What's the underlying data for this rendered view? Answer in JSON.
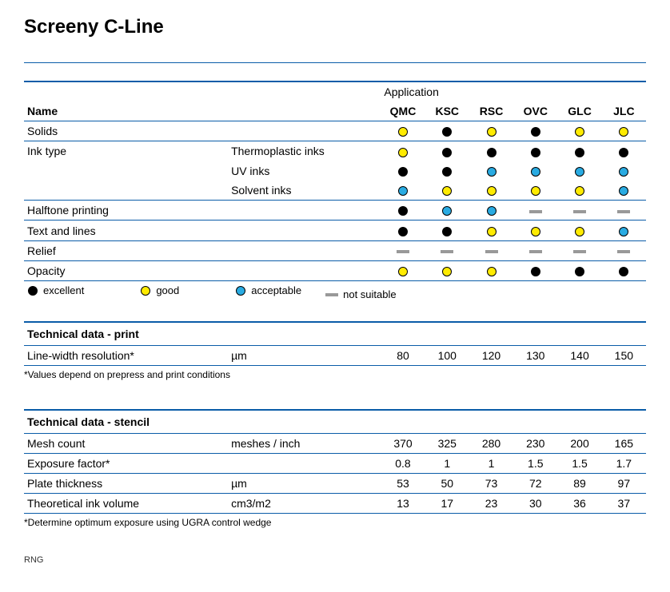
{
  "title": "Screeny C-Line",
  "columns": [
    "QMC",
    "KSC",
    "RSC",
    "OVC",
    "GLC",
    "JLC"
  ],
  "application_label": "Application",
  "name_label": "Name",
  "rating_colors": {
    "excellent": {
      "fill": "#000000",
      "stroke": "#000000"
    },
    "good": {
      "fill": "#ffeb00",
      "stroke": "#000000"
    },
    "acceptable": {
      "fill": "#29abe2",
      "stroke": "#000000"
    },
    "not_suitable": {
      "dash": "#999999"
    }
  },
  "legend": [
    {
      "key": "excellent",
      "label": "excellent"
    },
    {
      "key": "good",
      "label": "good"
    },
    {
      "key": "acceptable",
      "label": "acceptable"
    },
    {
      "key": "not_suitable",
      "label": "not suitable"
    }
  ],
  "app_rows": [
    {
      "name": "Solids",
      "sub": "",
      "vals": [
        "good",
        "excellent",
        "good",
        "excellent",
        "good",
        "good"
      ],
      "line": true
    },
    {
      "name": "Ink type",
      "sub": "Thermoplastic inks",
      "vals": [
        "good",
        "excellent",
        "excellent",
        "excellent",
        "excellent",
        "excellent"
      ],
      "line": false
    },
    {
      "name": "",
      "sub": "UV inks",
      "vals": [
        "excellent",
        "excellent",
        "acceptable",
        "acceptable",
        "acceptable",
        "acceptable"
      ],
      "line": false
    },
    {
      "name": "",
      "sub": "Solvent inks",
      "vals": [
        "acceptable",
        "good",
        "good",
        "good",
        "good",
        "acceptable"
      ],
      "line": true
    },
    {
      "name": "Halftone printing",
      "sub": "",
      "vals": [
        "excellent",
        "acceptable",
        "acceptable",
        "not_suitable",
        "not_suitable",
        "not_suitable"
      ],
      "line": true
    },
    {
      "name": "Text and lines",
      "sub": "",
      "vals": [
        "excellent",
        "excellent",
        "good",
        "good",
        "good",
        "acceptable"
      ],
      "line": true
    },
    {
      "name": "Relief",
      "sub": "",
      "vals": [
        "not_suitable",
        "not_suitable",
        "not_suitable",
        "not_suitable",
        "not_suitable",
        "not_suitable"
      ],
      "line": true
    },
    {
      "name": "Opacity",
      "sub": "",
      "vals": [
        "good",
        "good",
        "good",
        "excellent",
        "excellent",
        "excellent"
      ],
      "line": true
    }
  ],
  "tech_print": {
    "title": "Technical data - print",
    "rows": [
      {
        "name": "Line-width resolution*",
        "unit": "µm",
        "vals": [
          "80",
          "100",
          "120",
          "130",
          "140",
          "150"
        ]
      }
    ],
    "foot": "*Values depend on prepress and print conditions"
  },
  "tech_stencil": {
    "title": "Technical data - stencil",
    "rows": [
      {
        "name": "Mesh count",
        "unit": "meshes / inch",
        "vals": [
          "370",
          "325",
          "280",
          "230",
          "200",
          "165"
        ]
      },
      {
        "name": "Exposure factor*",
        "unit": "",
        "vals": [
          "0.8",
          "1",
          "1",
          "1.5",
          "1.5",
          "1.7"
        ]
      },
      {
        "name": "Plate thickness",
        "unit": "µm",
        "vals": [
          "53",
          "50",
          "73",
          "72",
          "89",
          "97"
        ]
      },
      {
        "name": "Theoretical ink volume",
        "unit": "cm3/m2",
        "vals": [
          "13",
          "17",
          "23",
          "30",
          "36",
          "37"
        ]
      }
    ],
    "foot": "*Determine optimum exposure using UGRA control wedge"
  },
  "footer_code": "RNG"
}
